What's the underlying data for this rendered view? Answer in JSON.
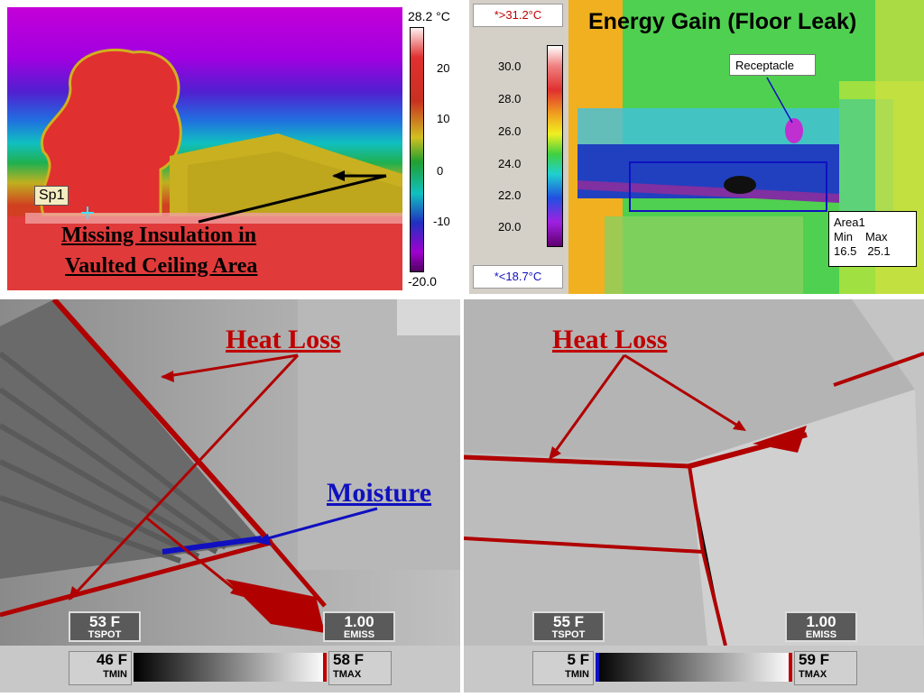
{
  "panel_tl": {
    "spot_label": "Sp1",
    "caption_line1": "Missing Insulation in",
    "caption_line2": "Vaulted Ceiling Area",
    "scale_top": "28.2 °C",
    "scale_ticks": [
      "20",
      "10",
      "0",
      "-10"
    ],
    "scale_bottom": "-20.0"
  },
  "panel_tm": {
    "max_label": "*>31.2°C",
    "min_label": "*<18.7°C",
    "ticks": [
      "30.0",
      "28.0",
      "26.0",
      "24.0",
      "22.0",
      "20.0"
    ]
  },
  "panel_tr": {
    "title": "Energy Gain (Floor Leak)",
    "receptacle_label": "Receptacle",
    "area_box": {
      "name": "Area1",
      "min_label": "Min",
      "max_label": "Max",
      "min_value": "16.5",
      "max_value": "25.1"
    }
  },
  "panel_bl": {
    "heat_loss_label": "Heat Loss",
    "moisture_label": "Moisture",
    "tspot_value": "53 F",
    "tspot_label": "TSPOT",
    "emiss_value": "1.00",
    "emiss_label": "EMISS",
    "tmin_value": "46 F",
    "tmin_label": "TMIN",
    "tmax_value": "58 F",
    "tmax_label": "TMAX"
  },
  "panel_br": {
    "heat_loss_label": "Heat Loss",
    "tspot_value": "55 F",
    "tspot_label": "TSPOT",
    "emiss_value": "1.00",
    "emiss_label": "EMISS",
    "tmin_value": "5 F",
    "tmin_label": "TMIN",
    "tmax_value": "59 F",
    "tmax_label": "TMAX"
  },
  "colors": {
    "heat_loss_red": "#c00000",
    "moisture_blue": "#1010c0",
    "title_green_bg": "#4fd04f"
  }
}
